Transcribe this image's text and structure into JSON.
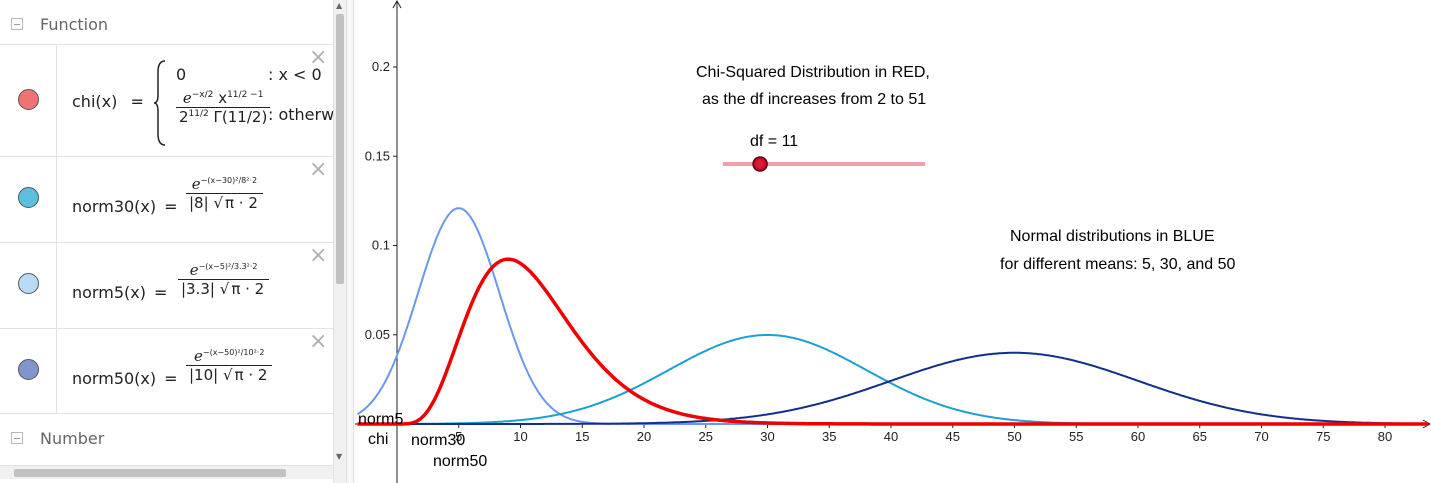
{
  "algebra": {
    "function_group": "Function",
    "number_group": "Number",
    "items": [
      {
        "name": "chi(x)",
        "eq": "=",
        "case1_value": "0",
        "case1_cond": ": x < 0",
        "num_base": "e",
        "num_exp": "−x/2",
        "num_mid": "x",
        "num_pow": "11/2 −1",
        "den_base": "2",
        "den_pow": "11/2",
        "den_gamma": "Γ(11/2)",
        "case2_cond": ": otherw",
        "color": "#f07272"
      },
      {
        "name": "norm30(x)",
        "eq": "=",
        "num_base": "e",
        "num_exp": "−(x−30)²/8²·2",
        "den_abs": "|8|",
        "den_sqrt": "√",
        "den_rad": "π · 2",
        "color": "#5bc0e0"
      },
      {
        "name": "norm5(x)",
        "eq": "=",
        "num_base": "e",
        "num_exp": "−(x−5)²/3.3²·2",
        "den_abs": "|3.3|",
        "den_sqrt": "√",
        "den_rad": "π · 2",
        "color": "#b9dcf6"
      },
      {
        "name": "norm50(x)",
        "eq": "=",
        "num_base": "e",
        "num_exp": "−(x−50)²/10²·2",
        "den_abs": "|10|",
        "den_sqrt": "√",
        "den_rad": "π · 2",
        "color": "#7f95cc"
      }
    ],
    "delete_icon": "×"
  },
  "graphics": {
    "title_line1": "Chi-Squared Distribution in RED,",
    "title_line2": "as the df increases from 2 to 51",
    "slider_label": "df = 11",
    "slider_value": 11,
    "slider_min": 2,
    "slider_max": 51,
    "normal_line1": "Normal distributions in BLUE",
    "normal_line2": "for different means:  5, 30, and 50",
    "label_norm5": "norm5",
    "label_chi": "chi",
    "label_norm30": "norm30",
    "label_norm50": "norm50",
    "colors": {
      "chi": "#ee0000",
      "norm5": "#6b98ee",
      "norm30": "#1aa0d2",
      "norm50": "#102e8c",
      "title": "#ee0000",
      "normal_text": "#1a3e9a",
      "slider": "#f4a0aa",
      "slider_point": "#c8102e"
    }
  },
  "chart_data": {
    "type": "line",
    "x_ticks": [
      "5",
      "10",
      "15",
      "20",
      "25",
      "30",
      "35",
      "40",
      "45",
      "50",
      "55",
      "60",
      "65",
      "70",
      "75",
      "80"
    ],
    "y_ticks": [
      "0.05",
      "0.1",
      "0.15",
      "0.2"
    ],
    "xlim": [
      -3.2,
      83.5
    ],
    "ylim": [
      -0.033,
      0.235
    ],
    "series": [
      {
        "name": "chi",
        "kind": "chi2",
        "df": 11
      },
      {
        "name": "norm5",
        "kind": "normal",
        "mean": 5,
        "sd": 3.3
      },
      {
        "name": "norm30",
        "kind": "normal",
        "mean": 30,
        "sd": 8
      },
      {
        "name": "norm50",
        "kind": "normal",
        "mean": 50,
        "sd": 10
      }
    ]
  }
}
